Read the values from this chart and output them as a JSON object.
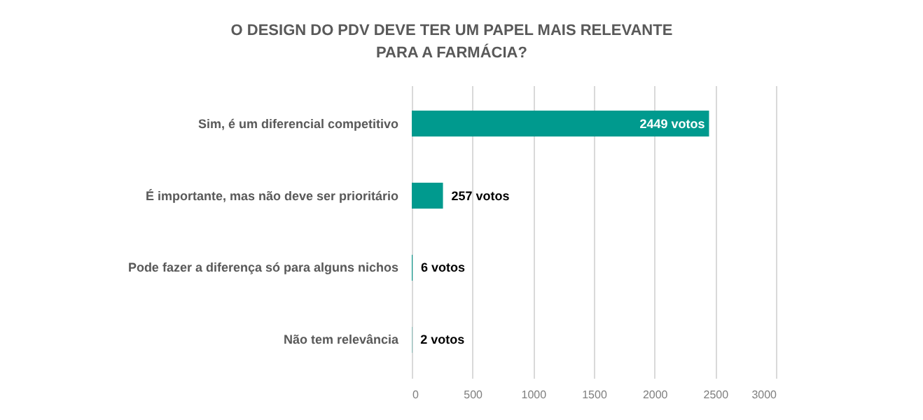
{
  "chart_data": {
    "type": "bar",
    "orientation": "horizontal",
    "title": "O DESIGN DO PDV DEVE TER UM PAPEL MAIS RELEVANTE PARA A FARMÁCIA?",
    "categories": [
      "Sim, é um diferencial competitivo",
      "É importante, mas não deve ser prioritário",
      "Pode fazer a diferença só para alguns nichos",
      "Não tem relevância"
    ],
    "values": [
      2449,
      257,
      6,
      2
    ],
    "value_labels": [
      "2449 votos",
      "257 votos",
      "6 votos",
      "2 votos"
    ],
    "color": "#009a8e",
    "xlim": [
      0,
      3000
    ],
    "xticks": [
      0,
      500,
      1000,
      1500,
      2000,
      2500,
      3000
    ],
    "grid": "x"
  }
}
